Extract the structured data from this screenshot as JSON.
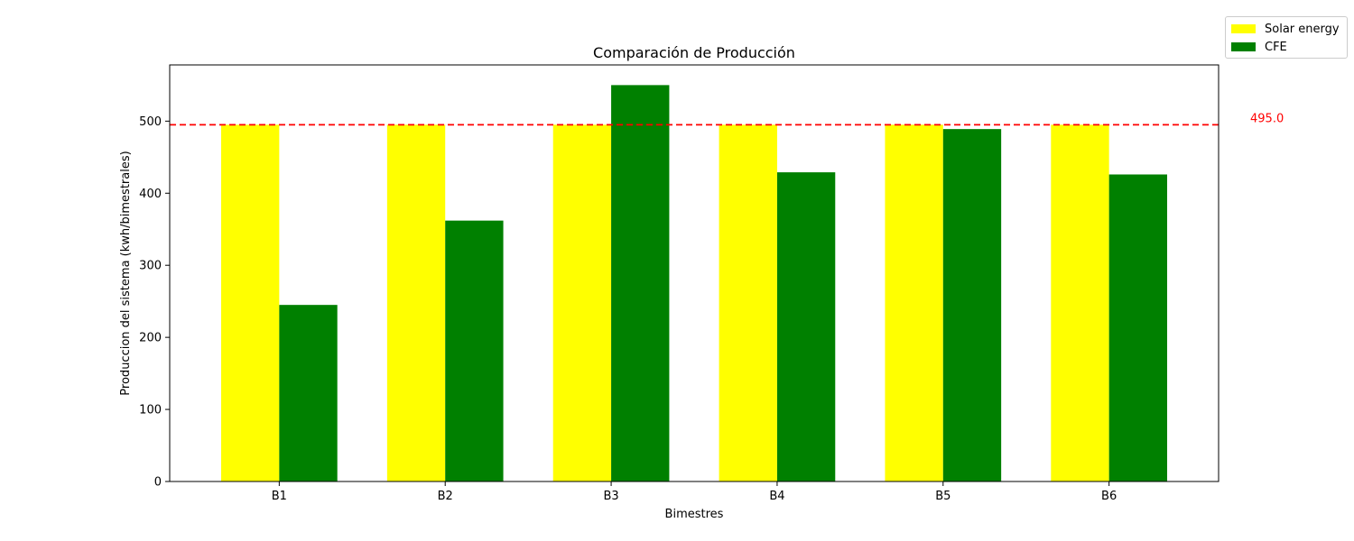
{
  "chart_data": {
    "type": "bar",
    "title": "Comparación de Producción",
    "xlabel": "Bimestres",
    "ylabel": "Produccion del sistema (kwh/bimestrales)",
    "categories": [
      "B1",
      "B2",
      "B3",
      "B4",
      "B5",
      "B6"
    ],
    "series": [
      {
        "name": "Solar energy",
        "color": "#ffff00",
        "values": [
          495,
          495,
          495,
          495,
          495,
          495
        ]
      },
      {
        "name": "CFE",
        "color": "#008000",
        "values": [
          245,
          362,
          550,
          429,
          489,
          426
        ]
      }
    ],
    "ylim": [
      0,
      578
    ],
    "yticks": [
      0,
      100,
      200,
      300,
      400,
      500
    ],
    "reference_line": {
      "value": 495.0,
      "label": "495.0",
      "color": "#ff0000",
      "style": "dashed"
    },
    "grid": false,
    "legend_position": "top-right"
  }
}
